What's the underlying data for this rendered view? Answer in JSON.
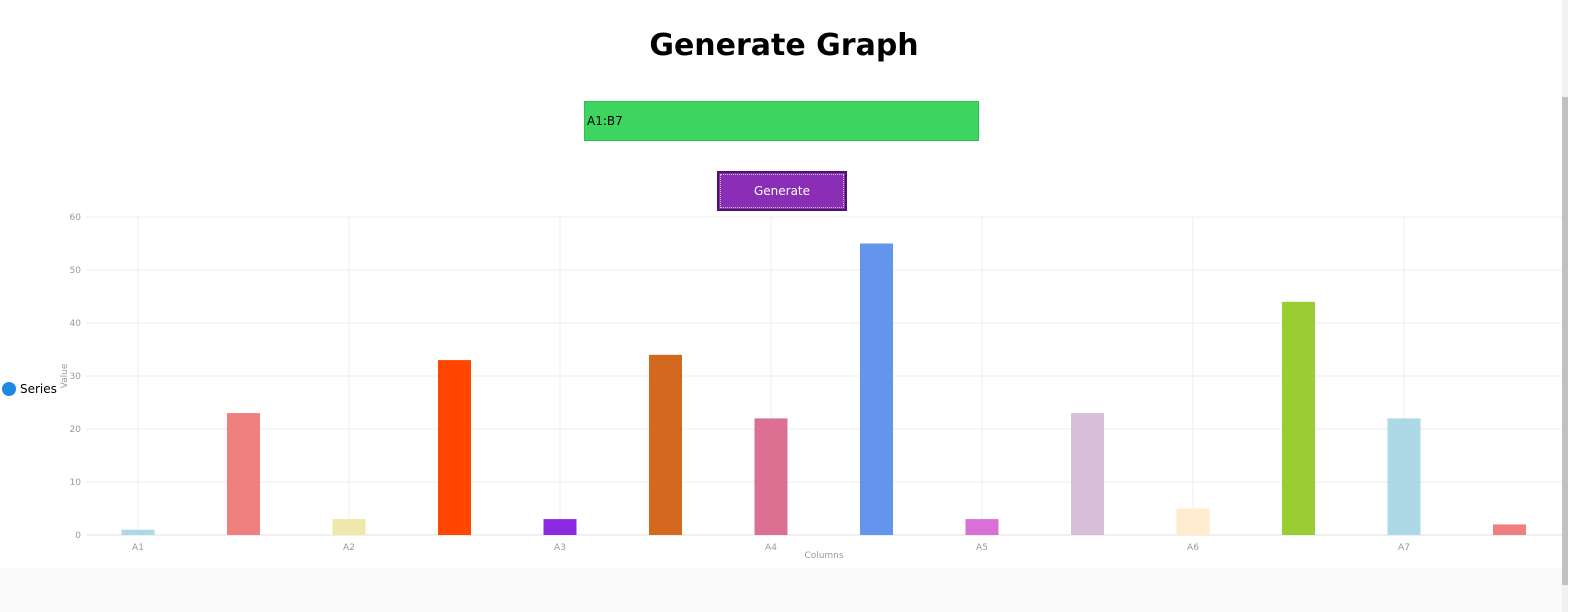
{
  "page": {
    "title": "Generate Graph"
  },
  "range_input": {
    "value": "A1:B7"
  },
  "generate_button": {
    "label": "Generate"
  },
  "legend": {
    "label": "Series",
    "marker_color": "#1e88e5"
  },
  "chart_data": {
    "type": "bar",
    "title": "",
    "xlabel": "Columns",
    "ylabel": "Value",
    "ylim": [
      0,
      60
    ],
    "yticks": [
      0,
      10,
      20,
      30,
      40,
      50,
      60
    ],
    "xtick_labels": [
      "A1",
      "A2",
      "A3",
      "A4",
      "A5",
      "A6",
      "A7"
    ],
    "grid": true,
    "legend_position": "left",
    "series": [
      {
        "name": "Series",
        "values": [
          1,
          23,
          3,
          33,
          3,
          34,
          22,
          55,
          3,
          23,
          5,
          44,
          22,
          2
        ],
        "colors": [
          "#add8e6",
          "#f08080",
          "#eee8aa",
          "#ff4500",
          "#8a2be2",
          "#d2691e",
          "#db7093",
          "#6495ed",
          "#da70d6",
          "#d8bfd8",
          "#ffebcd",
          "#9acd32",
          "#add8e6",
          "#f08080"
        ]
      }
    ]
  }
}
